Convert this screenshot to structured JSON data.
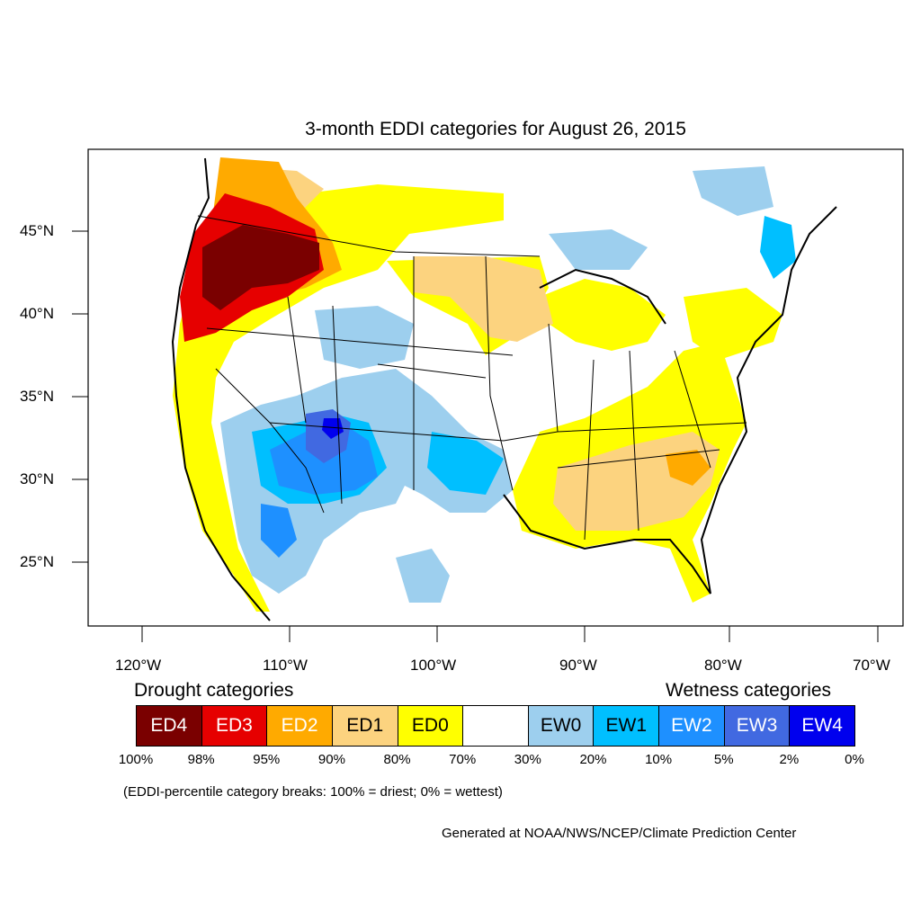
{
  "title": "3-month EDDI categories for August 26, 2015",
  "lat_labels": [
    "45°N",
    "40°N",
    "35°N",
    "30°N",
    "25°N"
  ],
  "lon_labels": [
    "120°W",
    "110°W",
    "100°W",
    "90°W",
    "80°W",
    "70°W"
  ],
  "legend": {
    "drought_heading": "Drought categories",
    "wetness_heading": "Wetness categories",
    "categories": [
      {
        "label": "ED4",
        "color": "#7a0000",
        "text_color": "#ffffff"
      },
      {
        "label": "ED3",
        "color": "#e60000",
        "text_color": "#ffffff"
      },
      {
        "label": "ED2",
        "color": "#ffaa00",
        "text_color": "#ffffff"
      },
      {
        "label": "ED1",
        "color": "#fcd37f",
        "text_color": "#000000"
      },
      {
        "label": "ED0",
        "color": "#ffff00",
        "text_color": "#000000"
      },
      {
        "label": "",
        "color": "#ffffff",
        "text_color": "#000000"
      },
      {
        "label": "EW0",
        "color": "#9dcfee",
        "text_color": "#000000"
      },
      {
        "label": "EW1",
        "color": "#00bfff",
        "text_color": "#000000"
      },
      {
        "label": "EW2",
        "color": "#1e90ff",
        "text_color": "#ffffff"
      },
      {
        "label": "EW3",
        "color": "#4169e1",
        "text_color": "#ffffff"
      },
      {
        "label": "EW4",
        "color": "#0000ee",
        "text_color": "#ffffff"
      }
    ],
    "breaks": [
      "100%",
      "98%",
      "95%",
      "90%",
      "80%",
      "70%",
      "30%",
      "20%",
      "10%",
      "5%",
      "2%",
      "0%"
    ]
  },
  "note": "(EDDI-percentile category breaks: 100% = driest; 0% = wettest)",
  "credit": "Generated at NOAA/NWS/NCEP/Climate Prediction Center"
}
